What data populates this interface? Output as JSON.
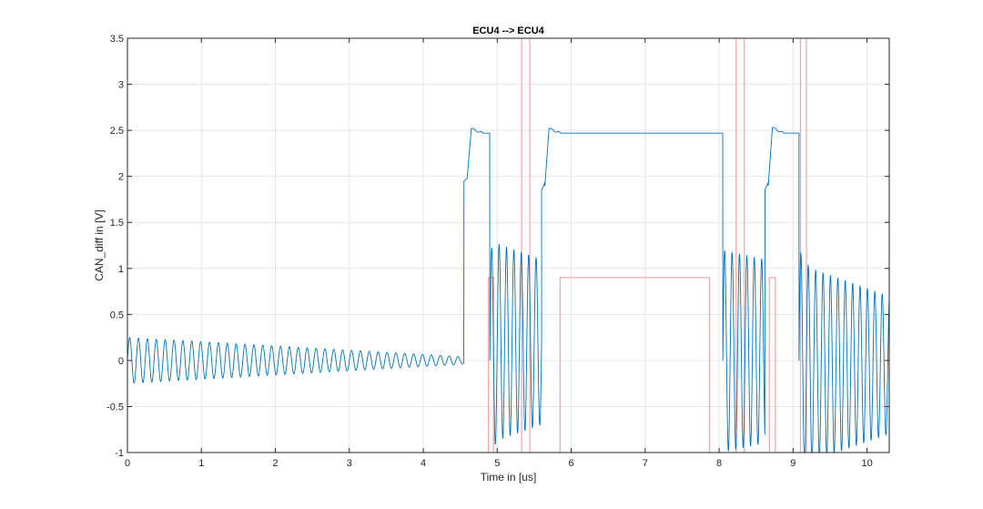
{
  "chart_data": {
    "type": "line",
    "title": "ECU4 --> ECU4",
    "xlabel": "Time in [us]",
    "ylabel": "CAN_diff in [V]",
    "xlim": [
      0,
      10.3
    ],
    "ylim": [
      -1,
      3.5
    ],
    "xticks": [
      "0",
      "1",
      "2",
      "3",
      "4",
      "5",
      "6",
      "7",
      "8",
      "9",
      "10"
    ],
    "yticks": [
      "3.5",
      "3",
      "2.5",
      "2",
      "1.5",
      "1",
      "0.5",
      "0",
      "-0.5",
      "-1"
    ],
    "grid": true,
    "colors": {
      "signal": "#0072BD",
      "marker": "#F4A6A6",
      "grid": "#E6E6E6",
      "axes": "#262626"
    },
    "series": [
      {
        "kind": "oscillating-signal",
        "segments": [
          {
            "type": "decaying-oscillation",
            "x": [
              0.0,
              4.55
            ],
            "center": 0.0,
            "amplitude": [
              0.25,
              0.04
            ],
            "period_us": 0.12
          },
          {
            "type": "dominant",
            "x": [
              4.55,
              4.9
            ],
            "level": 2.47,
            "overshoot": 2.52,
            "start_dip": 1.95
          },
          {
            "type": "ringing",
            "x": [
              4.9,
              5.6
            ],
            "center": 0.2,
            "amplitude": [
              1.1,
              0.9
            ],
            "period_us": 0.1
          },
          {
            "type": "dominant",
            "x": [
              5.6,
              8.05
            ],
            "level": 2.47,
            "overshoot": 2.52,
            "start_dip": 1.85
          },
          {
            "type": "ringing",
            "x": [
              8.05,
              8.62
            ],
            "center": 0.1,
            "amplitude": [
              1.1,
              1.0
            ],
            "period_us": 0.1
          },
          {
            "type": "dominant",
            "x": [
              8.62,
              9.08
            ],
            "level": 2.47,
            "overshoot": 2.53,
            "start_dip": 1.85
          },
          {
            "type": "ringing",
            "x": [
              9.08,
              10.3
            ],
            "center": -0.05,
            "amplitude": [
              1.1,
              0.75
            ],
            "period_us": 0.1
          }
        ]
      }
    ],
    "marker_pulses": [
      {
        "x": [
          4.88,
          4.95
        ],
        "level": 0.9
      },
      {
        "x": [
          5.85,
          7.87
        ],
        "level": 0.9
      },
      {
        "x": [
          8.68,
          8.76
        ],
        "level": 0.9
      }
    ],
    "marker_lines_x": [
      5.33,
      5.44,
      8.23,
      8.34,
      9.1,
      9.18
    ]
  }
}
